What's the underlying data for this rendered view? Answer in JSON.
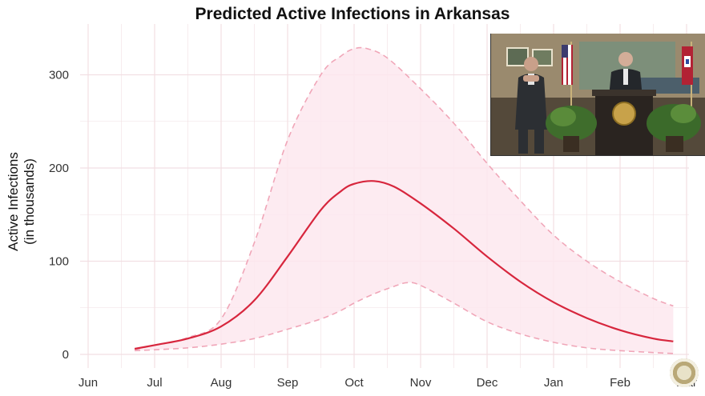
{
  "chart_data": {
    "type": "line",
    "title": "Predicted Active Infections in Arkansas",
    "ylabel_line1": "Active Infections",
    "ylabel_line2": "(in thousands)",
    "xlabel": "",
    "x_ticks": [
      "Jun",
      "Jul",
      "Aug",
      "Sep",
      "Oct",
      "Nov",
      "Dec",
      "Jan",
      "Feb",
      "Mar"
    ],
    "y_ticks": [
      0,
      100,
      200,
      300
    ],
    "xlim": [
      0,
      9
    ],
    "ylim": [
      -10,
      340
    ],
    "grid": true,
    "series": [
      {
        "style": "solid",
        "color": "#d7263d",
        "x": [
          0.7,
          1.0,
          1.5,
          2.0,
          2.5,
          3.0,
          3.5,
          3.8,
          4.0,
          4.3,
          4.6,
          5.0,
          5.5,
          6.0,
          6.5,
          7.0,
          7.5,
          8.0,
          8.5,
          8.8
        ],
        "y": [
          6,
          10,
          17,
          30,
          58,
          105,
          155,
          175,
          183,
          186,
          180,
          162,
          135,
          105,
          78,
          56,
          39,
          26,
          17,
          14
        ]
      },
      {
        "style": "dashed",
        "color": "#f0a6b8",
        "band": "upper",
        "x": [
          0.7,
          1.0,
          1.5,
          2.0,
          2.5,
          3.0,
          3.5,
          3.8,
          4.0,
          4.2,
          4.5,
          5.0,
          5.5,
          6.0,
          6.5,
          7.0,
          7.5,
          8.0,
          8.5,
          8.8
        ],
        "y": [
          5,
          10,
          18,
          38,
          120,
          230,
          300,
          320,
          328,
          328,
          318,
          285,
          248,
          205,
          165,
          128,
          100,
          78,
          60,
          52
        ]
      },
      {
        "style": "dashed",
        "color": "#f0a6b8",
        "band": "lower",
        "x": [
          0.7,
          1.0,
          1.5,
          2.0,
          2.5,
          3.0,
          3.5,
          3.8,
          4.0,
          4.3,
          4.6,
          4.8,
          5.0,
          5.5,
          6.0,
          6.5,
          7.0,
          7.5,
          8.0,
          8.5,
          8.8
        ],
        "y": [
          4,
          5,
          7,
          11,
          17,
          27,
          38,
          47,
          55,
          65,
          73,
          77,
          74,
          55,
          35,
          22,
          13,
          7,
          4,
          2,
          1
        ]
      }
    ],
    "band_fill": "#fde8ef"
  },
  "colors": {
    "main_line": "#d7263d",
    "band_edge": "#f0a6b8",
    "band_fill": "#fde8ef",
    "grid": "#f2dfe3"
  },
  "video_inset": {
    "icons": [
      "person-sign-language-icon",
      "person-at-podium-icon",
      "flag-icon",
      "plant-icon",
      "seal-icon"
    ]
  }
}
